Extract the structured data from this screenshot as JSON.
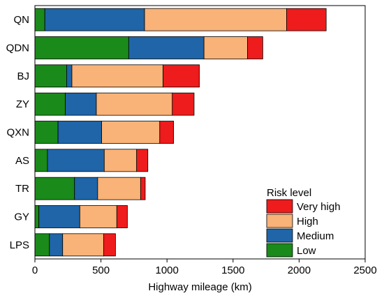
{
  "chart_data": {
    "type": "bar",
    "orientation": "horizontal",
    "stacked": true,
    "categories": [
      "QN",
      "QDN",
      "BJ",
      "ZY",
      "QXN",
      "AS",
      "TR",
      "GY",
      "LPS"
    ],
    "series": [
      {
        "name": "Low",
        "color": "#1a8a1a",
        "values": [
          75,
          710,
          240,
          230,
          175,
          95,
          300,
          30,
          110
        ]
      },
      {
        "name": "Medium",
        "color": "#1f65a8",
        "values": [
          755,
          570,
          40,
          235,
          330,
          430,
          175,
          310,
          100
        ]
      },
      {
        "name": "High",
        "color": "#f9b277",
        "values": [
          1075,
          330,
          690,
          575,
          440,
          245,
          325,
          280,
          310
        ]
      },
      {
        "name": "Very high",
        "color": "#ee1c1c",
        "values": [
          300,
          115,
          275,
          165,
          105,
          85,
          35,
          80,
          90
        ]
      }
    ],
    "xlabel": "Highway mileage (km)",
    "xlim": [
      0,
      2500
    ],
    "xticks": [
      "0",
      "500",
      "1000",
      "1500",
      "2000",
      "2500"
    ],
    "legend": {
      "title": "Risk level",
      "position": "bottom-right",
      "items": [
        "Very high",
        "High",
        "Medium",
        "Low"
      ]
    },
    "grid": false
  }
}
